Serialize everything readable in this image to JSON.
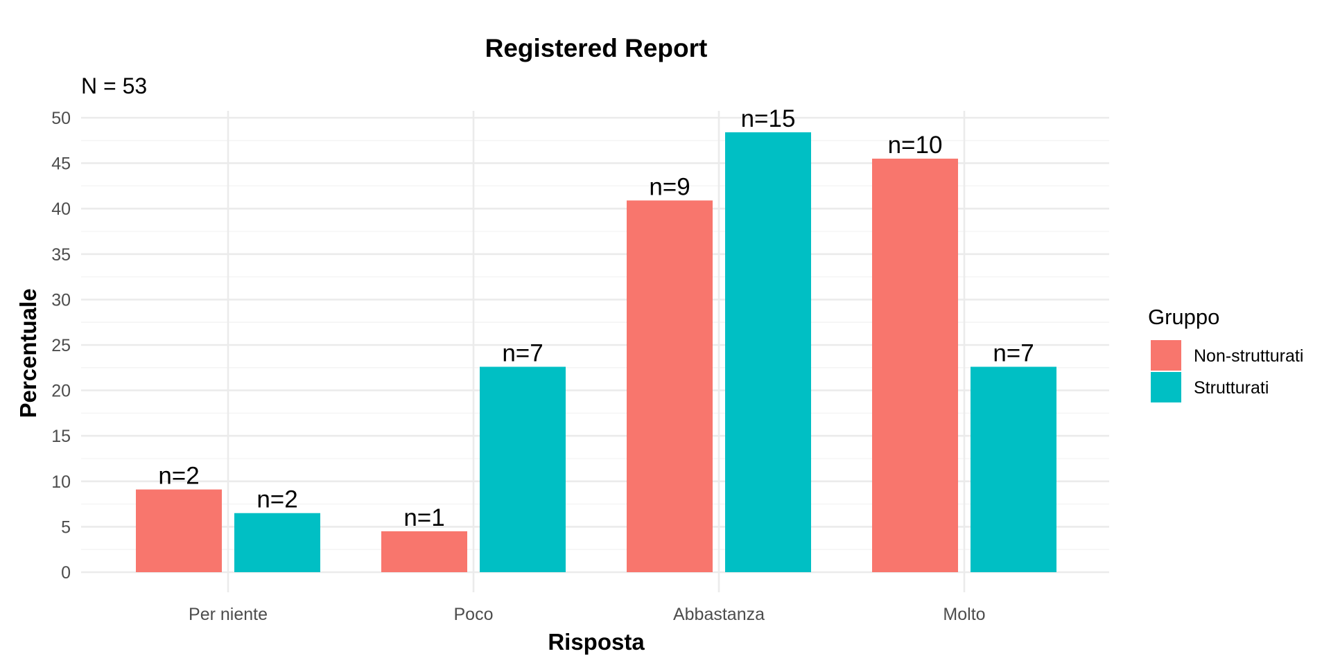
{
  "chart_data": {
    "type": "bar",
    "title": "Registered Report",
    "subtitle": "N = 53",
    "xlabel": "Risposta",
    "ylabel": "Percentuale",
    "categories": [
      "Per niente",
      "Poco",
      "Abbastanza",
      "Molto"
    ],
    "ylim": [
      0,
      50
    ],
    "yticks": [
      "0",
      "5",
      "10",
      "15",
      "20",
      "25",
      "30",
      "35",
      "40",
      "45",
      "50"
    ],
    "grid": true,
    "legend": {
      "title": "Gruppo",
      "position": "right"
    },
    "series": [
      {
        "name": "Non-strutturati",
        "color": "#F8766D",
        "values": [
          9.1,
          4.5,
          40.9,
          45.5
        ],
        "labels": [
          "n=2",
          "n=1",
          "n=9",
          "n=10"
        ]
      },
      {
        "name": "Strutturati",
        "color": "#00BFC4",
        "values": [
          6.5,
          22.6,
          48.4,
          22.6
        ],
        "labels": [
          "n=2",
          "n=7",
          "n=15",
          "n=7"
        ]
      }
    ]
  }
}
